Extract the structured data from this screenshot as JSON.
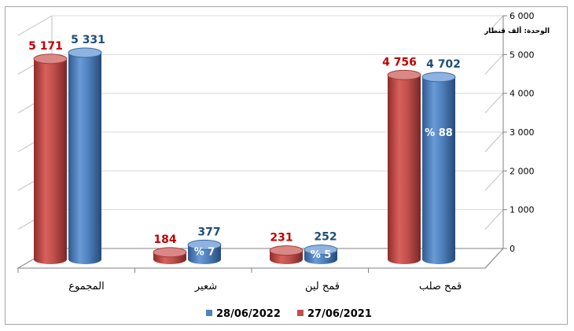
{
  "chart_data": {
    "type": "bar",
    "title": "",
    "unit_label": "الوحدة: ألف قنطار",
    "categories": [
      "المجموع",
      "شعير",
      "قمح لين",
      "قمح صلب"
    ],
    "series": [
      {
        "name": "27/06/2021",
        "color": "#c0504d",
        "values": [
          5171,
          184,
          231,
          4756
        ],
        "labels": [
          "5 171",
          "184",
          "231",
          "4 756"
        ]
      },
      {
        "name": "28/06/2022",
        "color": "#4f81bd",
        "values": [
          5331,
          377,
          252,
          4702
        ],
        "labels": [
          "5 331",
          "377",
          "252",
          "4 702"
        ]
      }
    ],
    "share_labels": [
      "",
      "% 7",
      "% 5",
      "% 88"
    ],
    "ylim": [
      0,
      6000
    ],
    "yticks": [
      0,
      1000,
      2000,
      3000,
      4000,
      5000,
      6000
    ],
    "ytick_labels": [
      "0",
      "1 000",
      "2 000",
      "3 000",
      "4 000",
      "5 000",
      "6 000"
    ],
    "y_axis_position": "right",
    "gridlines": true,
    "legend_position": "bottom"
  }
}
